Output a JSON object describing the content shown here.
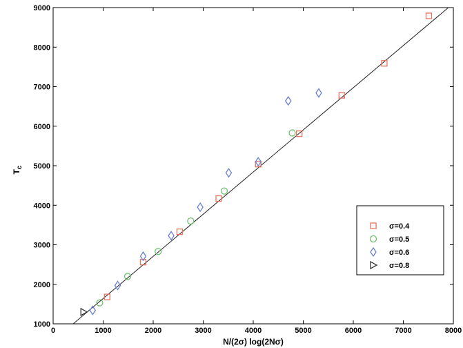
{
  "chart_data": {
    "type": "scatter",
    "title": "",
    "xlabel": "N/(2σ) log(2Nσ)",
    "ylabel": "T",
    "ylabel_subscript": "c",
    "xlim": [
      0,
      8000
    ],
    "ylim": [
      1000,
      9000
    ],
    "xticks": [
      0,
      1000,
      2000,
      3000,
      4000,
      5000,
      6000,
      7000,
      8000
    ],
    "yticks": [
      1000,
      2000,
      3000,
      4000,
      5000,
      6000,
      7000,
      8000,
      9000
    ],
    "grid": false,
    "legend_position": "lower-right",
    "series": [
      {
        "name": "σ=0.4",
        "marker": "square",
        "color": "#e8735e",
        "points": [
          [
            1080,
            1680
          ],
          [
            1800,
            2560
          ],
          [
            2530,
            3330
          ],
          [
            3310,
            4170
          ],
          [
            4100,
            5040
          ],
          [
            4920,
            5810
          ],
          [
            5770,
            6780
          ],
          [
            6620,
            7590
          ],
          [
            7510,
            8790
          ]
        ]
      },
      {
        "name": "σ=0.5",
        "marker": "circle",
        "color": "#6cbf6c",
        "points": [
          [
            930,
            1530
          ],
          [
            1490,
            2200
          ],
          [
            2100,
            2830
          ],
          [
            2750,
            3600
          ],
          [
            3420,
            4360
          ],
          [
            4780,
            5830
          ]
        ]
      },
      {
        "name": "σ=0.6",
        "marker": "diamond",
        "color": "#6a7fd0",
        "points": [
          [
            790,
            1340
          ],
          [
            1290,
            1970
          ],
          [
            1800,
            2710
          ],
          [
            2360,
            3230
          ],
          [
            2940,
            3950
          ],
          [
            3510,
            4820
          ],
          [
            4100,
            5100
          ],
          [
            4700,
            6640
          ],
          [
            5310,
            6840
          ]
        ]
      },
      {
        "name": "σ=0.8",
        "marker": "triangle-right",
        "color": "#333333",
        "points": [
          [
            610,
            1300
          ]
        ]
      }
    ],
    "fit_line": {
      "points": [
        [
          400,
          1000
        ],
        [
          7900,
          9000
        ]
      ]
    }
  }
}
